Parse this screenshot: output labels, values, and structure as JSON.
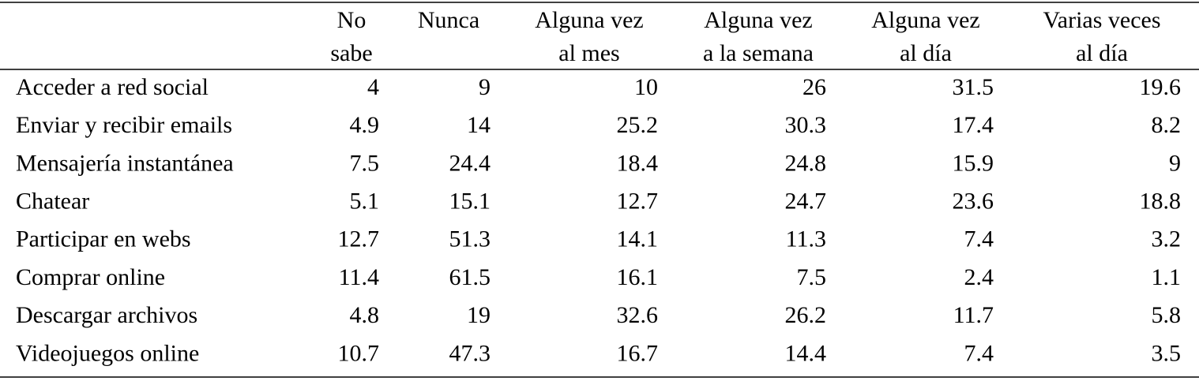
{
  "table": {
    "columns": [
      [
        "No",
        "sabe"
      ],
      [
        "Nunca"
      ],
      [
        "Alguna vez",
        "al mes"
      ],
      [
        "Alguna vez",
        "a la semana"
      ],
      [
        "Alguna vez",
        "al día"
      ],
      [
        "Varias veces",
        "al día"
      ]
    ],
    "rows": [
      {
        "label": "Acceder a red social",
        "values": [
          4,
          9,
          10,
          26,
          31.5,
          19.6
        ]
      },
      {
        "label": "Enviar y recibir emails",
        "values": [
          4.9,
          14,
          25.2,
          30.3,
          17.4,
          8.2
        ]
      },
      {
        "label": "Mensajería instantánea",
        "values": [
          7.5,
          24.4,
          18.4,
          24.8,
          15.9,
          9
        ]
      },
      {
        "label": "Chatear",
        "values": [
          5.1,
          15.1,
          12.7,
          24.7,
          23.6,
          18.8
        ]
      },
      {
        "label": "Participar en webs",
        "values": [
          12.7,
          51.3,
          14.1,
          11.3,
          7.4,
          3.2
        ]
      },
      {
        "label": "Comprar online",
        "values": [
          11.4,
          61.5,
          16.1,
          7.5,
          2.4,
          1.1
        ]
      },
      {
        "label": "Descargar archivos",
        "values": [
          4.8,
          19,
          32.6,
          26.2,
          11.7,
          5.8
        ]
      },
      {
        "label": "Videojuegos online",
        "values": [
          10.7,
          47.3,
          16.7,
          14.4,
          7.4,
          3.5
        ]
      }
    ]
  }
}
